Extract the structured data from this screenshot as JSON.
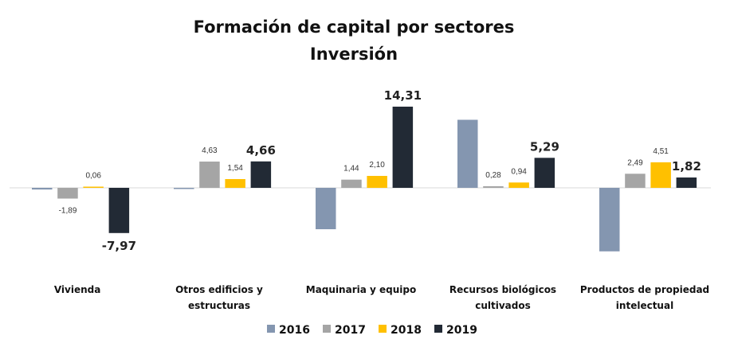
{
  "chart_data": {
    "type": "bar",
    "title": "Formación de capital por sectores",
    "subtitle": "Inversión",
    "categories": [
      [
        "Vivienda"
      ],
      [
        "Otros edificios y",
        "estructuras"
      ],
      [
        "Maquinaria y equipo"
      ],
      [
        "Recursos biológicos",
        "cultivados"
      ],
      [
        "Productos de propiedad",
        "intelectual"
      ]
    ],
    "series": [
      {
        "name": "2016",
        "color": "#8496B0",
        "values": [
          -0.3,
          -0.2,
          -7.3,
          12.0,
          -11.2
        ],
        "labels": [
          "",
          "",
          "",
          "",
          ""
        ]
      },
      {
        "name": "2017",
        "color": "#A5A5A5",
        "values": [
          -1.89,
          4.63,
          1.44,
          0.28,
          2.49
        ],
        "labels": [
          "-1,89",
          "4,63",
          "1,44",
          "0,28",
          "2,49"
        ]
      },
      {
        "name": "2018",
        "color": "#FFC000",
        "values": [
          0.06,
          1.54,
          2.1,
          0.94,
          4.51
        ],
        "labels": [
          "0,06",
          "1,54",
          "2,10",
          "0,94",
          "4,51"
        ]
      },
      {
        "name": "2019",
        "color": "#222A35",
        "values": [
          -7.97,
          4.66,
          14.31,
          5.29,
          1.82
        ],
        "labels": [
          "-7,97",
          "4,66",
          "14,31",
          "5,29",
          "1,82"
        ]
      }
    ],
    "ylim": [
      -12,
      14.31
    ],
    "grid": false,
    "legend": "bottom"
  }
}
